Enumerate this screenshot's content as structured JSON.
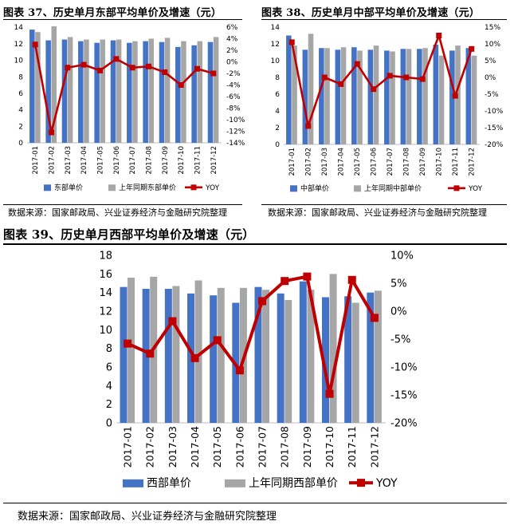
{
  "figures": [
    {
      "title": "图表 37、历史单月东部平均单价及增速（元）",
      "source": "数据来源：国家邮政局、兴业证券经济与金融研究院整理"
    },
    {
      "title": "图表 38、历史单月中部平均单价及增速（元）",
      "source": "数据来源：国家邮政局、兴业证券经济与金融研究院整理"
    },
    {
      "title": "图表 39、历史单月西部平均单价及增速（元）",
      "source": "数据来源：国家邮政局、兴业证券经济与金融研究院整理"
    }
  ],
  "colors": {
    "bar_current": "#4472C4",
    "bar_prev": "#A6A6A6",
    "yoy_line": "#C00000"
  },
  "chart_data": [
    {
      "type": "bar",
      "categories": [
        "2017-01",
        "2017-02",
        "2017-03",
        "2017-04",
        "2017-05",
        "2017-06",
        "2017-07",
        "2017-08",
        "2017-09",
        "2017-10",
        "2017-11",
        "2017-12"
      ],
      "series": [
        {
          "name": "东部单价",
          "type": "bar",
          "axis": "left",
          "values": [
            13.7,
            12.4,
            12.5,
            12.3,
            12.1,
            12.4,
            12.1,
            12.3,
            12.2,
            11.6,
            11.8,
            12.2
          ]
        },
        {
          "name": "上年同期东部单价",
          "type": "bar",
          "axis": "left",
          "values": [
            13.4,
            14.1,
            12.8,
            12.5,
            12.5,
            12.5,
            12.3,
            12.6,
            12.7,
            12.3,
            12.3,
            12.8
          ]
        },
        {
          "name": "YOY",
          "type": "line",
          "axis": "right",
          "values": [
            3.0,
            -12.2,
            -1.0,
            -0.5,
            -1.5,
            0.5,
            -1.0,
            -0.8,
            -1.8,
            -4.0,
            -1.2,
            -2.0
          ]
        }
      ],
      "ylim": [
        0,
        14
      ],
      "yticks": [
        0,
        2,
        4,
        6,
        8,
        10,
        12,
        14
      ],
      "y2lim": [
        -14,
        6
      ],
      "y2ticks": [
        -14,
        -12,
        -10,
        -8,
        -6,
        -4,
        -2,
        0,
        2,
        4,
        6
      ],
      "y2tick_labels": [
        "-14%",
        "-12%",
        "-10%",
        "-8%",
        "-6%",
        "-4%",
        "-2%",
        "0%",
        "2%",
        "4%",
        "6%"
      ],
      "grid": false,
      "legend": "bottom"
    },
    {
      "type": "bar",
      "categories": [
        "2017-01",
        "2017-02",
        "2017-03",
        "2017-04",
        "2017-05",
        "2017-06",
        "2017-07",
        "2017-08",
        "2017-09",
        "2017-10",
        "2017-11",
        "2017-12"
      ],
      "series": [
        {
          "name": "中部单价",
          "type": "bar",
          "axis": "left",
          "values": [
            13.0,
            11.3,
            11.5,
            11.3,
            11.6,
            11.3,
            11.2,
            11.4,
            11.4,
            11.9,
            11.2,
            11.5
          ]
        },
        {
          "name": "上年同期中部单价",
          "type": "bar",
          "axis": "left",
          "values": [
            11.8,
            13.2,
            11.5,
            11.6,
            11.2,
            11.8,
            11.1,
            11.4,
            11.5,
            10.6,
            11.8,
            10.6
          ]
        },
        {
          "name": "YOY",
          "type": "line",
          "axis": "right",
          "values": [
            10.5,
            -14.5,
            0.0,
            -2.0,
            4.0,
            -3.5,
            0.5,
            0.0,
            -0.5,
            12.5,
            -5.5,
            8.5
          ]
        }
      ],
      "ylim": [
        0,
        14
      ],
      "yticks": [
        0,
        2,
        4,
        6,
        8,
        10,
        12,
        14
      ],
      "y2lim": [
        -20,
        15
      ],
      "y2ticks": [
        -20,
        -15,
        -10,
        -5,
        0,
        5,
        10,
        15
      ],
      "y2tick_labels": [
        "-20%",
        "-15%",
        "-10%",
        "-5%",
        "0%",
        "5%",
        "10%",
        "15%"
      ],
      "grid": false,
      "legend": "bottom"
    },
    {
      "type": "bar",
      "categories": [
        "2017-01",
        "2017-02",
        "2017-03",
        "2017-04",
        "2017-05",
        "2017-06",
        "2017-07",
        "2017-08",
        "2017-09",
        "2017-10",
        "2017-11",
        "2017-12"
      ],
      "series": [
        {
          "name": "西部单价",
          "type": "bar",
          "axis": "left",
          "values": [
            14.6,
            14.4,
            14.4,
            13.9,
            13.7,
            12.9,
            14.6,
            13.9,
            15.2,
            13.5,
            13.6,
            14.0
          ]
        },
        {
          "name": "上年同期西部单价",
          "type": "bar",
          "axis": "left",
          "values": [
            15.6,
            15.7,
            14.7,
            15.3,
            14.5,
            14.5,
            14.3,
            13.2,
            14.3,
            16.0,
            12.9,
            14.2
          ]
        },
        {
          "name": "YOY",
          "type": "line",
          "axis": "right",
          "values": [
            -5.8,
            -7.6,
            -1.8,
            -8.4,
            -5.2,
            -10.6,
            1.8,
            5.4,
            6.2,
            -14.8,
            5.6,
            -1.2
          ]
        }
      ],
      "ylim": [
        0,
        18
      ],
      "yticks": [
        0,
        2,
        4,
        6,
        8,
        10,
        12,
        14,
        16,
        18
      ],
      "y2lim": [
        -20,
        10
      ],
      "y2ticks": [
        -20,
        -15,
        -10,
        -5,
        0,
        5,
        10
      ],
      "y2tick_labels": [
        "-20%",
        "-15%",
        "-10%",
        "-5%",
        "0%",
        "5%",
        "10%"
      ],
      "grid": false,
      "legend": "bottom"
    }
  ]
}
